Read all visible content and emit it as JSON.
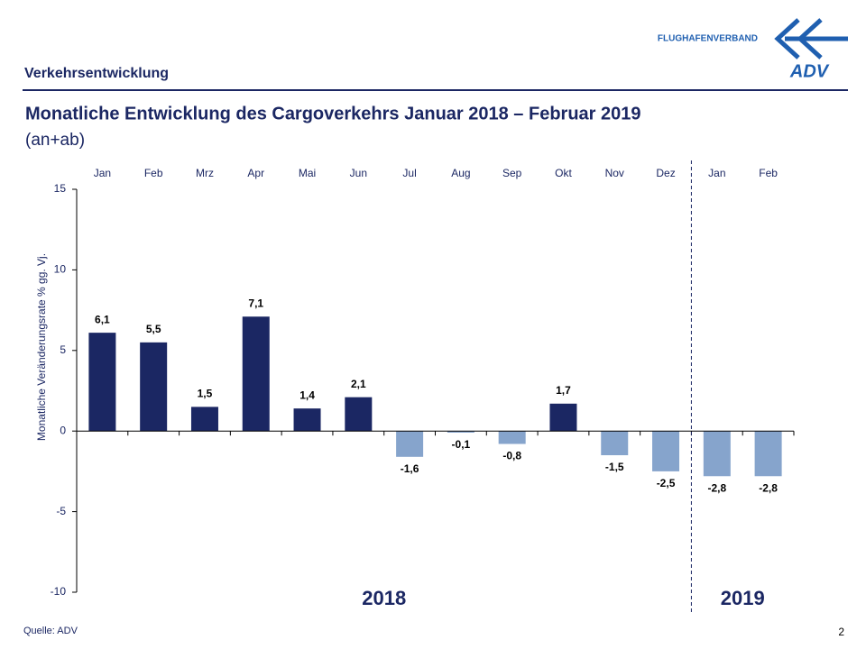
{
  "header": {
    "section": "Verkehrsentwicklung",
    "logo_text": "FLUGHAFENVERBAND",
    "logo_mark": "ADV"
  },
  "footer": {
    "source": "Quelle: ADV",
    "page": "2"
  },
  "chart_data": {
    "type": "bar",
    "title": "Monatliche Entwicklung des Cargoverkehrs Januar 2018 – Februar 2019",
    "subtitle": "(an+ab)",
    "y_label": "Monatliche Veränderungsrate % gg. Vj.",
    "categories": [
      "Jan",
      "Feb",
      "Mrz",
      "Apr",
      "Mai",
      "Jun",
      "Jul",
      "Aug",
      "Sep",
      "Okt",
      "Nov",
      "Dez",
      "Jan",
      "Feb"
    ],
    "values": [
      6.1,
      5.5,
      1.5,
      7.1,
      1.4,
      2.1,
      -1.6,
      -0.1,
      -0.8,
      1.7,
      -1.5,
      -2.5,
      -2.8,
      -2.8
    ],
    "value_labels": [
      "6,1",
      "5,5",
      "1,5",
      "7,1",
      "1,4",
      "2,1",
      "-1,6",
      "-0,1",
      "-0,8",
      "1,7",
      "-1,5",
      "-2,5",
      "-2,8",
      "-2,8"
    ],
    "positive_color": "#1b2763",
    "negative_color": "#86a4cc",
    "groups": [
      {
        "label": "2018",
        "count": 12
      },
      {
        "label": "2019",
        "count": 2
      }
    ],
    "ylim": [
      -10,
      15
    ],
    "yticks": [
      -10,
      -5,
      0,
      5,
      10,
      15
    ]
  }
}
